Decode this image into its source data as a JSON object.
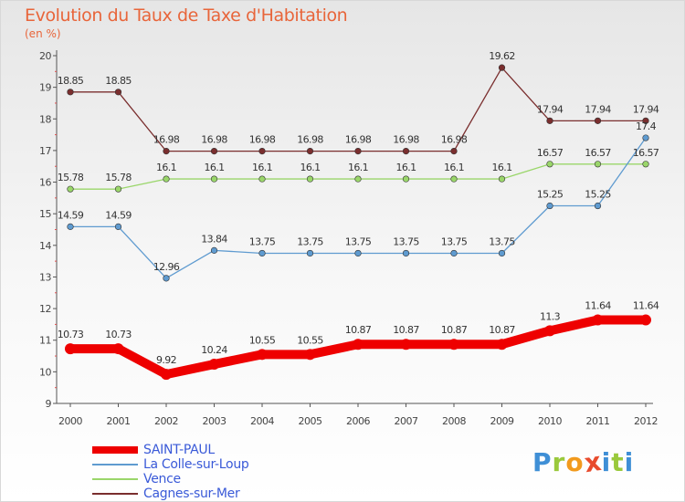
{
  "title": "Evolution du Taux de Taxe d'Habitation",
  "subtitle": "(en %)",
  "logo": {
    "text": "Proxiti",
    "letters": [
      {
        "ch": "P",
        "color": "#3f8fd6"
      },
      {
        "ch": "r",
        "color": "#9ac93c"
      },
      {
        "ch": "o",
        "color": "#f29a1d"
      },
      {
        "ch": "x",
        "color": "#e84b2d"
      },
      {
        "ch": "i",
        "color": "#3f8fd6"
      },
      {
        "ch": "t",
        "color": "#9ac93c"
      },
      {
        "ch": "i",
        "color": "#3f8fd6"
      }
    ]
  },
  "chart_data": {
    "type": "line",
    "title": "Evolution du Taux de Taxe d'Habitation",
    "subtitle": "(en %)",
    "x": [
      "2000",
      "2001",
      "2002",
      "2003",
      "2004",
      "2005",
      "2006",
      "2007",
      "2008",
      "2009",
      "2010",
      "2011",
      "2012"
    ],
    "ylim": [
      9,
      20
    ],
    "yticks": [
      9,
      10,
      11,
      12,
      13,
      14,
      15,
      16,
      17,
      18,
      19,
      20
    ],
    "grid": false,
    "legend_position": "bottom-left",
    "series": [
      {
        "name": "SAINT-PAUL",
        "color": "#ee0000",
        "values": [
          10.73,
          10.73,
          9.92,
          10.24,
          10.55,
          10.55,
          10.87,
          10.87,
          10.87,
          10.87,
          11.3,
          11.64,
          11.64
        ],
        "labels": [
          "10.73",
          "10.73",
          "9.92",
          "10.24",
          "10.55",
          "10.55",
          "10.87",
          "10.87",
          "10.87",
          "10.87",
          "11.3",
          "11.64",
          "11.64"
        ]
      },
      {
        "name": "La Colle-sur-Loup",
        "color": "#5f9bd0",
        "values": [
          14.59,
          14.59,
          12.96,
          13.84,
          13.75,
          13.75,
          13.75,
          13.75,
          13.75,
          13.75,
          15.25,
          15.25,
          17.4
        ],
        "labels": [
          "14.59",
          "14.59",
          "12.96",
          "13.84",
          "13.75",
          "13.75",
          "13.75",
          "13.75",
          "13.75",
          "13.75",
          "15.25",
          "15.25",
          "17.4"
        ]
      },
      {
        "name": "Vence",
        "color": "#9ad66a",
        "values": [
          15.78,
          15.78,
          16.1,
          16.1,
          16.1,
          16.1,
          16.1,
          16.1,
          16.1,
          16.1,
          16.57,
          16.57,
          16.57
        ],
        "labels": [
          "15.78",
          "15.78",
          "16.1",
          "16.1",
          "16.1",
          "16.1",
          "16.1",
          "16.1",
          "16.1",
          "16.1",
          "16.57",
          "16.57",
          "16.57"
        ]
      },
      {
        "name": "Cagnes-sur-Mer",
        "color": "#7a2e2e",
        "values": [
          18.85,
          18.85,
          16.98,
          16.98,
          16.98,
          16.98,
          16.98,
          16.98,
          16.98,
          19.62,
          17.94,
          17.94,
          17.94
        ],
        "labels": [
          "18.85",
          "18.85",
          "16.98",
          "16.98",
          "16.98",
          "16.98",
          "16.98",
          "16.98",
          "16.98",
          "19.62",
          "17.94",
          "17.94",
          "17.94"
        ]
      }
    ]
  }
}
